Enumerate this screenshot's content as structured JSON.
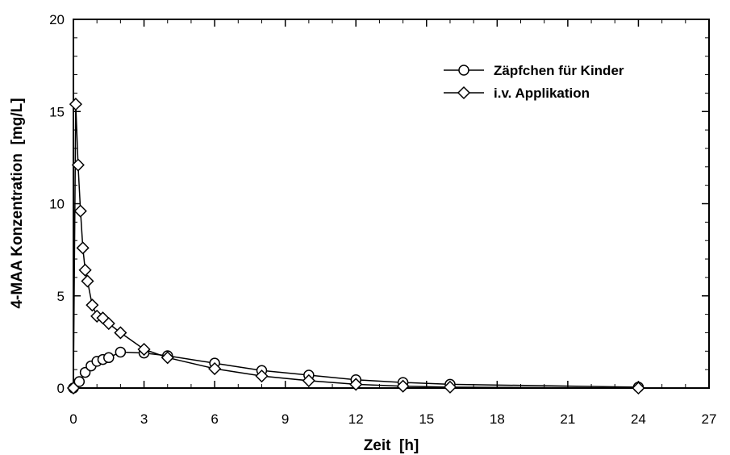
{
  "chart_data": {
    "type": "line",
    "xlabel": "Zeit  [h]",
    "ylabel": "4-MAA Konzentration  [mg/L]",
    "xlim": [
      0,
      27
    ],
    "ylim": [
      0,
      20
    ],
    "x_ticks": [
      "0",
      "3",
      "6",
      "9",
      "12",
      "15",
      "18",
      "21",
      "24",
      "27"
    ],
    "y_ticks": [
      "0",
      "5",
      "10",
      "15",
      "20"
    ],
    "grid": false,
    "legend_position": "top-right",
    "series": [
      {
        "name": "Zäpfchen für Kinder",
        "marker": "circle",
        "x": [
          0,
          0.25,
          0.5,
          0.75,
          1,
          1.25,
          1.5,
          2,
          3,
          4,
          6,
          8,
          10,
          12,
          14,
          16,
          24
        ],
        "y": [
          0,
          0.35,
          0.85,
          1.2,
          1.45,
          1.55,
          1.65,
          1.95,
          1.9,
          1.75,
          1.35,
          0.95,
          0.7,
          0.45,
          0.3,
          0.2,
          0.05
        ]
      },
      {
        "name": "i.v. Applikation",
        "marker": "diamond",
        "x": [
          0,
          0.1,
          0.2,
          0.3,
          0.4,
          0.5,
          0.6,
          0.8,
          1,
          1.25,
          1.5,
          2,
          3,
          4,
          6,
          8,
          10,
          12,
          14,
          16,
          24
        ],
        "y": [
          0,
          15.4,
          12.1,
          9.6,
          7.6,
          6.4,
          5.8,
          4.5,
          3.9,
          3.8,
          3.5,
          3.0,
          2.1,
          1.65,
          1.05,
          0.65,
          0.4,
          0.2,
          0.1,
          0.05,
          0.0
        ]
      }
    ]
  }
}
